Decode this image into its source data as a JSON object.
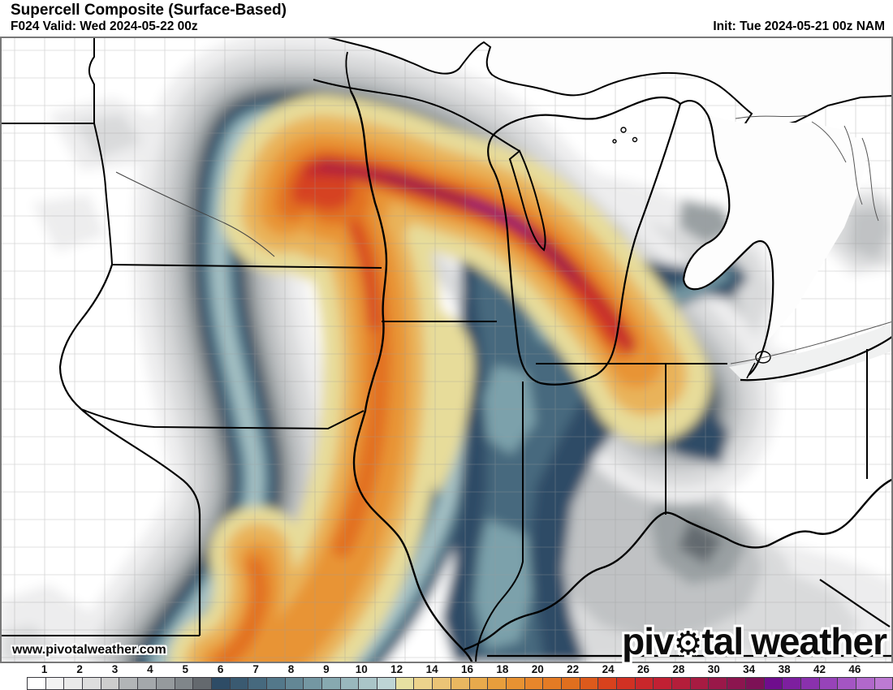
{
  "header": {
    "title": "Supercell Composite (Surface-Based)",
    "valid_line": "F024 Valid: Wed 2024-05-22 00z",
    "init_line": "Init: Tue 2024-05-21 00z NAM"
  },
  "watermark": {
    "url": "www.pivotalweather.com"
  },
  "logo": {
    "word1_pre": "piv",
    "gear": "⚙",
    "word1_post": "tal",
    "word2": "weather"
  },
  "colorbar": {
    "tick_labels": [
      "1",
      "2",
      "3",
      "4",
      "5",
      "6",
      "7",
      "8",
      "9",
      "10",
      "12",
      "14",
      "16",
      "18",
      "20",
      "22",
      "24",
      "26",
      "28",
      "30",
      "34",
      "38",
      "42",
      "46"
    ],
    "cell_colors": [
      "#ffffff",
      "#f3f3f3",
      "#eaeaea",
      "#dedede",
      "#cdcdcd",
      "#b2b5b7",
      "#a4a8ab",
      "#959a9d",
      "#80868a",
      "#64696e",
      "#2e4c66",
      "#3a5a71",
      "#46697e",
      "#53788a",
      "#638795",
      "#7497a2",
      "#87a9b0",
      "#99b8bd",
      "#aac5c8",
      "#bed5d5",
      "#e6e0a2",
      "#ecd38c",
      "#ebc476",
      "#e9b760",
      "#e8aa4c",
      "#e89e3c",
      "#e89232",
      "#e8862b",
      "#e47b24",
      "#e06f1e",
      "#dd5a1c",
      "#d8421d",
      "#d13123",
      "#c9272b",
      "#c12033",
      "#b41e3a",
      "#a71b42",
      "#9a1849",
      "#8c154f",
      "#7d1156",
      "#6f0d8d",
      "#7d1f9f",
      "#8a31ad",
      "#9743b9",
      "#a455c3",
      "#b168cb",
      "#bd7ad3",
      "#cd92dc"
    ]
  },
  "palette": {
    "g1": "#ededee",
    "g2": "#d9dadb",
    "g3": "#c0c2c4",
    "g4": "#9aa0a3",
    "g5": "#646a6f",
    "b6": "#2e4c66",
    "b7": "#46697e",
    "b8": "#7ba1ab",
    "b9": "#aac5c8",
    "y10": "#e7dc9a",
    "o12": "#e9b35a",
    "o13": "#e89434",
    "o14": "#e27120",
    "r15": "#d64220",
    "r16": "#c3272e",
    "c17": "#a51c42",
    "c18": "#871352",
    "p19": "#70108e",
    "land": "#ffffff",
    "lake_fill": "#fdfdfd",
    "erie_fill": "#f0f1f1",
    "county_line": "#9b9b9b",
    "border_line": "#000000",
    "frame": "#787878"
  }
}
